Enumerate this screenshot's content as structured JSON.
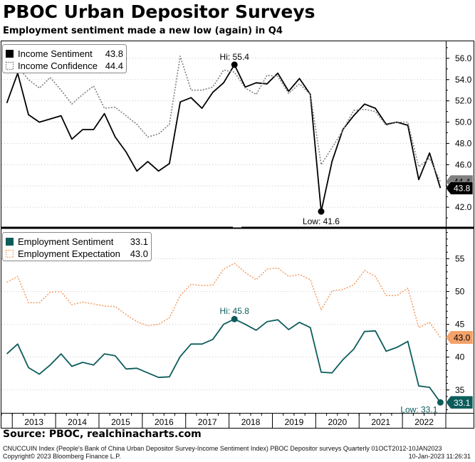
{
  "title": "PBOC Urban Depositor Surveys",
  "subtitle": "Employment sentiment made a new low (again) in Q4",
  "source": "Source: PBOC, realchinacharts.com",
  "footer": {
    "left_line1": "CNUCCUIN Index (People's Bank of China Urban Depositor Survey-Income Sentiment Index) PBOC Depositor surveys  Quarterly 01OCT2012-10JAN2023",
    "left_line2": "Copyright© 2023 Bloomberg Finance L.P.",
    "right_line1": "",
    "right_line2": "10-Jan-2023 11:26:31"
  },
  "colors": {
    "income_sentiment": "#000000",
    "income_confidence": "#808080",
    "employment_sentiment": "#0d5c5c",
    "employment_expectation": "#f4a16a"
  },
  "chart_data": [
    {
      "type": "line",
      "x_label": "",
      "y_label": "",
      "ylim": [
        40.2,
        57.6
      ],
      "y_ticks": [
        "42.0",
        "44.0",
        "46.0",
        "48.0",
        "50.0",
        "52.0",
        "54.0",
        "56.0"
      ],
      "legend_position": "top-left",
      "grid": true,
      "series": [
        {
          "name": "Income Sentiment",
          "last_label": "43.8",
          "style": "solid",
          "color": "#000000",
          "values": [
            51.8,
            54.6,
            50.7,
            50.0,
            50.3,
            50.6,
            48.4,
            49.3,
            49.3,
            50.8,
            48.6,
            47.2,
            45.4,
            46.3,
            45.4,
            46.1,
            51.9,
            52.3,
            51.3,
            52.8,
            53.7,
            55.4,
            53.3,
            53.7,
            53.6,
            54.6,
            52.9,
            54.1,
            52.6,
            41.6,
            46.3,
            49.3,
            50.6,
            51.7,
            51.3,
            49.8,
            50.0,
            49.7,
            44.6,
            47.1,
            43.8
          ]
        },
        {
          "name": "Income Confidence",
          "last_label": "44.4",
          "style": "dotted",
          "color": "#808080",
          "values": [
            54.9,
            55.2,
            54.0,
            53.2,
            54.2,
            53.0,
            51.7,
            52.6,
            53.4,
            51.3,
            51.4,
            50.6,
            49.8,
            48.6,
            48.9,
            49.8,
            56.2,
            53.0,
            53.0,
            53.3,
            54.9,
            54.7,
            53.2,
            52.6,
            54.4,
            54.3,
            52.7,
            53.6,
            52.6,
            46.0,
            47.6,
            49.2,
            51.1,
            51.2,
            51.0,
            49.7,
            50.0,
            50.0,
            45.8,
            46.6,
            44.4
          ]
        }
      ],
      "annotations": [
        {
          "text": "Hi: 55.4",
          "index": 21,
          "value": 55.4
        },
        {
          "text": "Low: 41.6",
          "index": 29,
          "value": 41.6
        }
      ]
    },
    {
      "type": "line",
      "x_label": "",
      "y_label": "",
      "ylim": [
        31.5,
        59.5
      ],
      "y_ticks": [
        "35",
        "40",
        "45",
        "50",
        "55"
      ],
      "x_ticks": [
        "2013",
        "2014",
        "2015",
        "2016",
        "2017",
        "2018",
        "2019",
        "2020",
        "2021",
        "2022"
      ],
      "legend_position": "top-left",
      "grid": true,
      "series": [
        {
          "name": "Employment Sentiment",
          "last_label": "33.1",
          "style": "solid",
          "color": "#0d5c5c",
          "values": [
            40.5,
            42.0,
            38.4,
            37.4,
            38.8,
            40.5,
            38.6,
            39.2,
            38.8,
            40.5,
            40.2,
            38.2,
            38.3,
            37.6,
            36.9,
            37.0,
            40.1,
            42.0,
            42.0,
            42.7,
            45.0,
            45.8,
            45.0,
            44.1,
            45.4,
            45.7,
            44.2,
            45.3,
            44.5,
            37.7,
            37.6,
            39.6,
            41.2,
            43.9,
            44.0,
            40.9,
            41.5,
            42.4,
            35.6,
            35.4,
            33.1
          ]
        },
        {
          "name": "Employment Expectation",
          "last_label": "43.0",
          "style": "dotted",
          "color": "#f4a16a",
          "values": [
            51.4,
            52.3,
            48.3,
            48.3,
            49.9,
            50.0,
            48.0,
            48.4,
            48.1,
            47.8,
            47.7,
            46.5,
            45.4,
            44.8,
            45.0,
            46.0,
            49.4,
            51.1,
            50.9,
            51.0,
            53.4,
            54.3,
            52.9,
            51.8,
            53.4,
            53.6,
            52.3,
            52.6,
            51.8,
            47.2,
            50.1,
            50.3,
            51.0,
            53.2,
            52.3,
            49.4,
            49.4,
            50.5,
            44.5,
            45.3,
            43.0
          ]
        }
      ],
      "annotations": [
        {
          "text": "Hi: 45.8",
          "index": 21,
          "value": 45.8
        },
        {
          "text": "Low: 33.1",
          "index": 40,
          "value": 33.1
        }
      ]
    }
  ]
}
